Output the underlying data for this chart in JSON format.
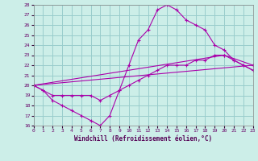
{
  "title": "",
  "xlabel": "Windchill (Refroidissement éolien,°C)",
  "xlim": [
    0,
    23
  ],
  "ylim": [
    16,
    28
  ],
  "xticks": [
    0,
    1,
    2,
    3,
    4,
    5,
    6,
    7,
    8,
    9,
    10,
    11,
    12,
    13,
    14,
    15,
    16,
    17,
    18,
    19,
    20,
    21,
    22,
    23
  ],
  "yticks": [
    16,
    17,
    18,
    19,
    20,
    21,
    22,
    23,
    24,
    25,
    26,
    27,
    28
  ],
  "bg_color": "#cceee8",
  "line_color": "#aa00aa",
  "grid_color": "#99cccc",
  "line1_x": [
    0,
    1,
    2,
    3,
    4,
    5,
    6,
    7,
    8,
    9,
    10,
    11,
    12,
    13,
    14,
    15,
    16,
    17,
    18,
    19,
    20,
    21,
    22,
    23
  ],
  "line1_y": [
    20.0,
    19.5,
    18.5,
    18.0,
    17.5,
    17.0,
    16.5,
    16.0,
    17.0,
    19.5,
    22.0,
    24.5,
    25.5,
    27.5,
    28.0,
    27.5,
    26.5,
    26.0,
    25.5,
    24.0,
    23.5,
    22.5,
    22.0,
    21.5
  ],
  "line2_x": [
    0,
    1,
    2,
    3,
    4,
    5,
    6,
    7,
    8,
    9,
    10,
    11,
    12,
    13,
    14,
    15,
    16,
    17,
    18,
    19,
    20,
    21,
    22,
    23
  ],
  "line2_y": [
    20.0,
    19.5,
    19.0,
    19.0,
    19.0,
    19.0,
    19.0,
    18.5,
    19.0,
    19.5,
    20.0,
    20.5,
    21.0,
    21.5,
    22.0,
    22.0,
    22.0,
    22.5,
    22.5,
    23.0,
    23.0,
    22.5,
    22.0,
    21.5
  ],
  "line3_x": [
    0,
    20,
    23
  ],
  "line3_y": [
    20.0,
    23.0,
    22.0
  ],
  "line4_x": [
    0,
    23
  ],
  "line4_y": [
    20.0,
    22.0
  ]
}
